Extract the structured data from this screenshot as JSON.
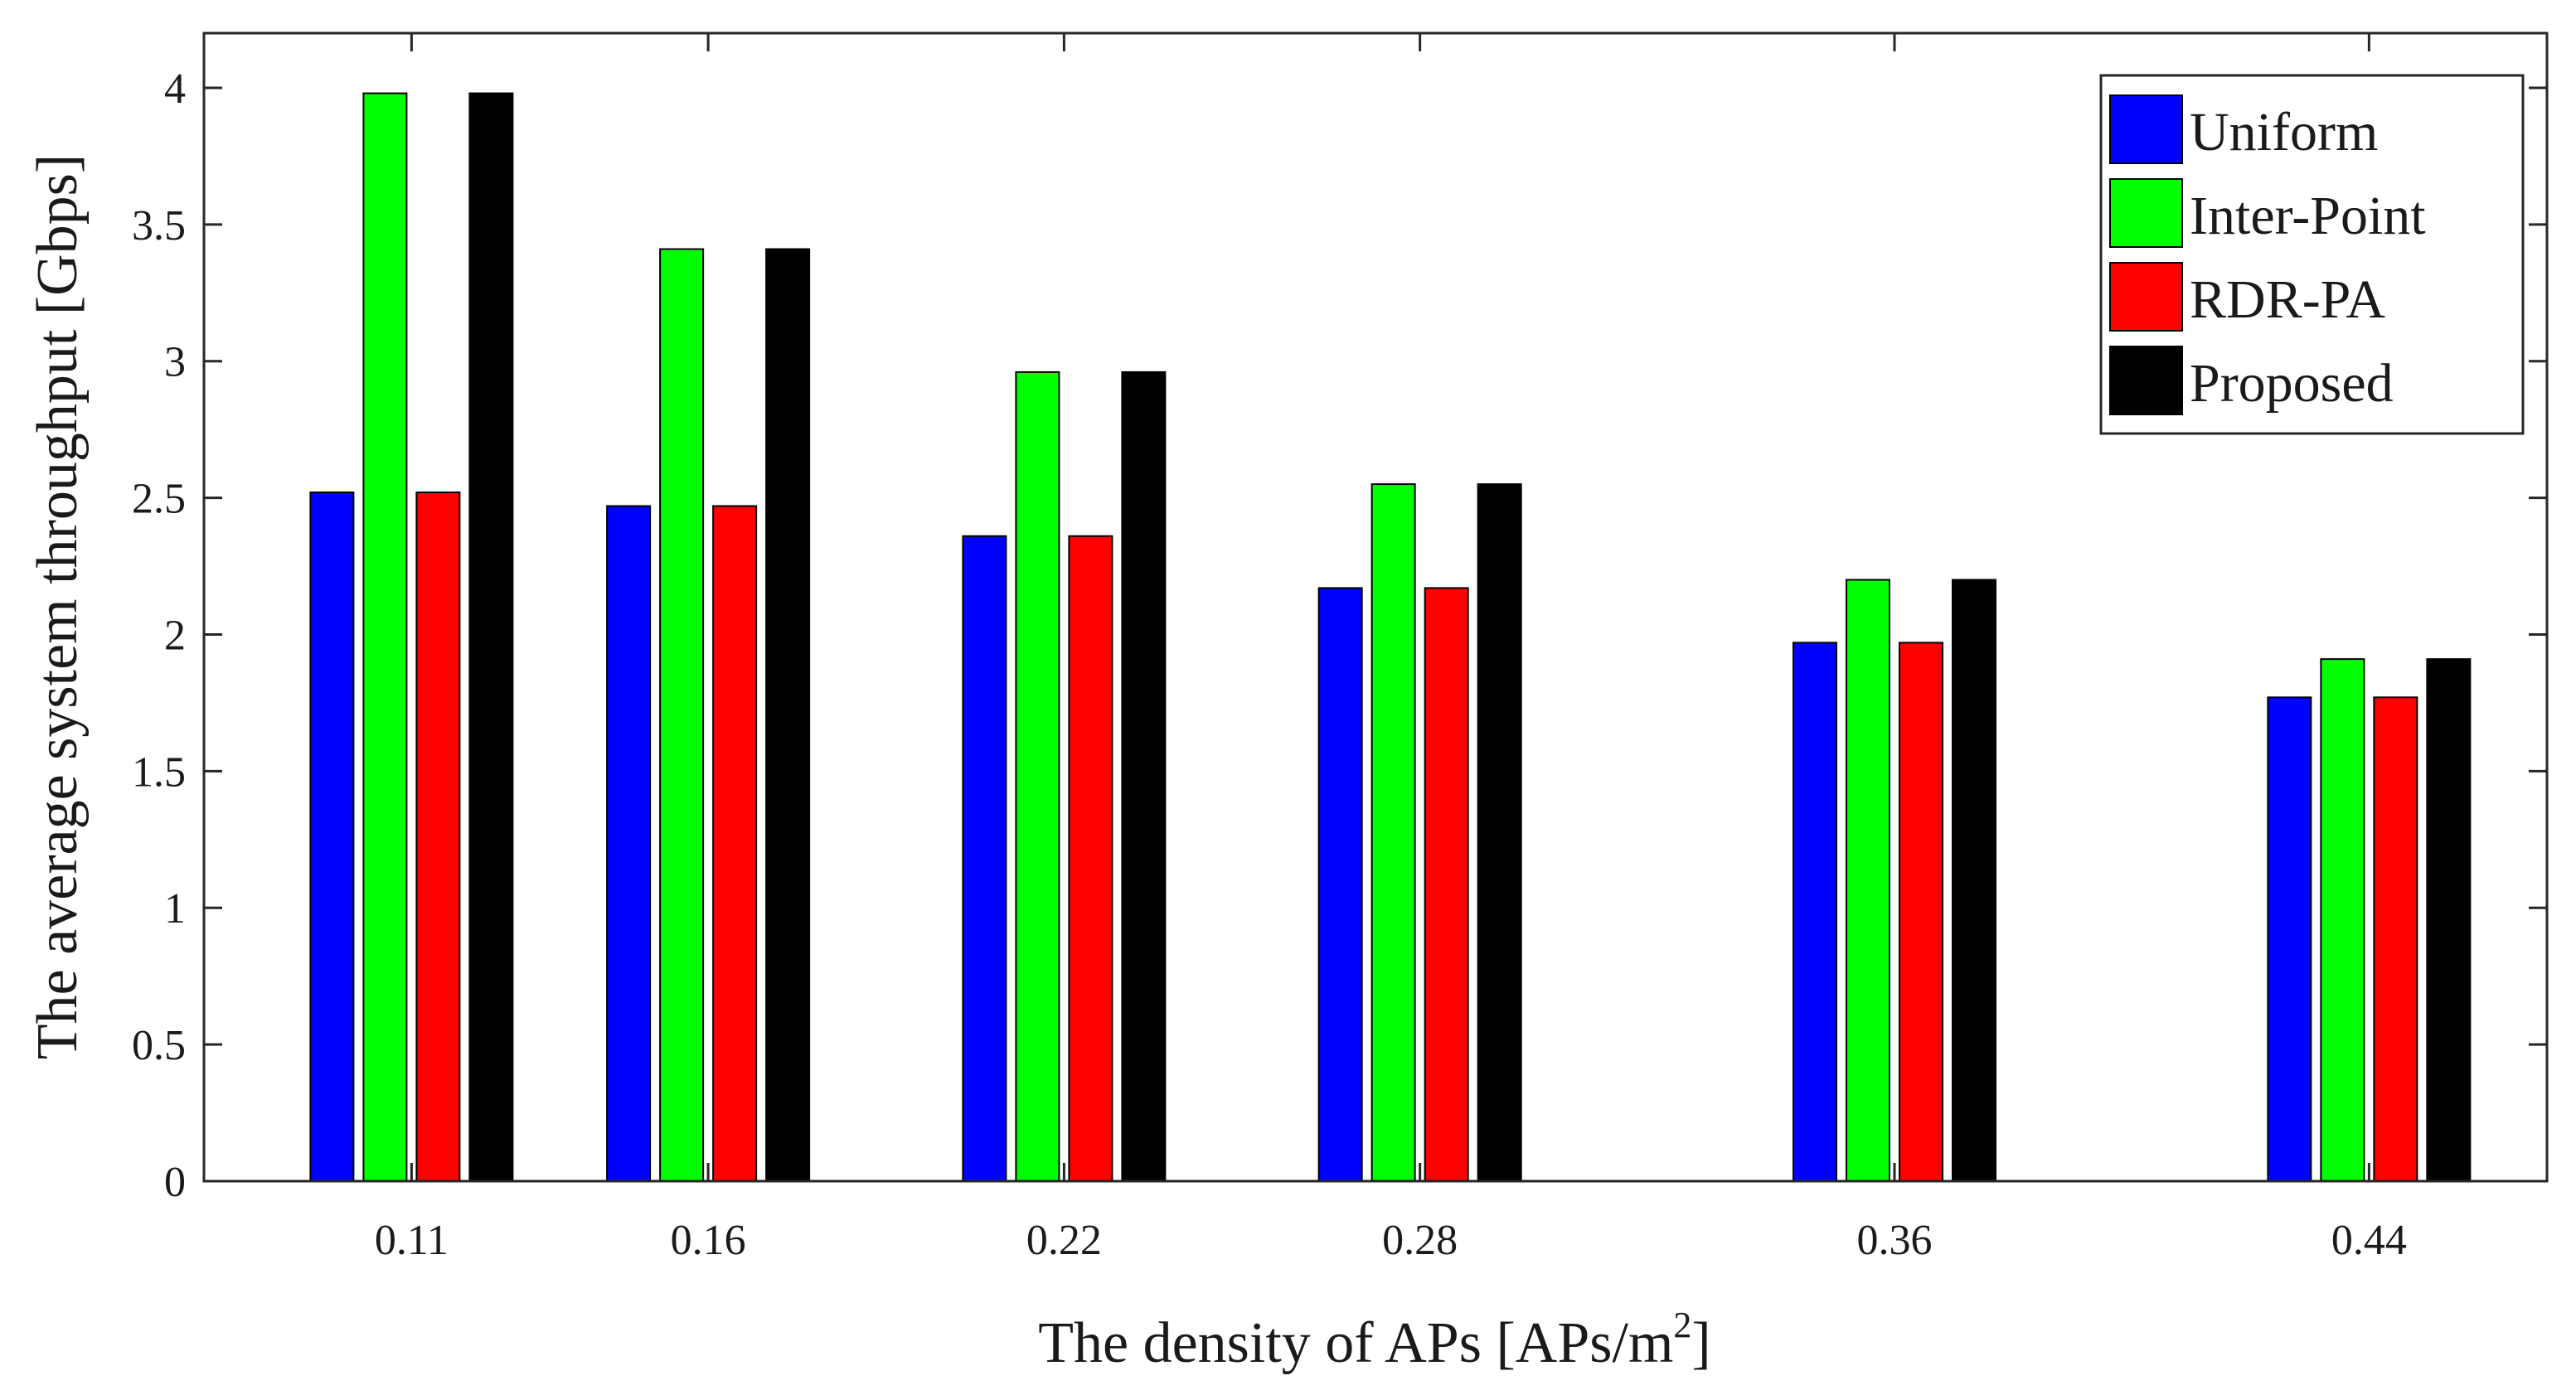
{
  "chart_data": {
    "type": "bar",
    "title": "",
    "xlabel": "The density of APs [APs/m",
    "xlabel_superscript": "2",
    "xlabel_suffix": "]",
    "ylabel": "The average system throughput [Gbps]",
    "ylim": [
      0,
      4.2
    ],
    "yticks": [
      "0",
      "0.5",
      "1",
      "1.5",
      "2",
      "2.5",
      "3",
      "3.5",
      "4"
    ],
    "ytick_values": [
      0,
      0.5,
      1,
      1.5,
      2,
      2.5,
      3,
      3.5,
      4
    ],
    "x": [
      0.11,
      0.16,
      0.22,
      0.28,
      0.36,
      0.44
    ],
    "xlim": [
      0.075,
      0.47
    ],
    "categories": [
      "0.11",
      "0.16",
      "0.22",
      "0.28",
      "0.36",
      "0.44"
    ],
    "grid": false,
    "legend_position": "top-right",
    "series": [
      {
        "name": "Uniform",
        "color": "#0000ff",
        "values": [
          2.52,
          2.47,
          2.36,
          2.17,
          1.97,
          1.77
        ]
      },
      {
        "name": "Inter-Point",
        "color": "#00ff00",
        "values": [
          3.98,
          3.41,
          2.96,
          2.55,
          2.2,
          1.91
        ]
      },
      {
        "name": "RDR-PA",
        "color": "#ff0000",
        "values": [
          2.52,
          2.47,
          2.36,
          2.17,
          1.97,
          1.77
        ]
      },
      {
        "name": "Proposed",
        "color": "#000000",
        "values": [
          3.98,
          3.41,
          2.96,
          2.55,
          2.2,
          1.91
        ]
      }
    ]
  }
}
